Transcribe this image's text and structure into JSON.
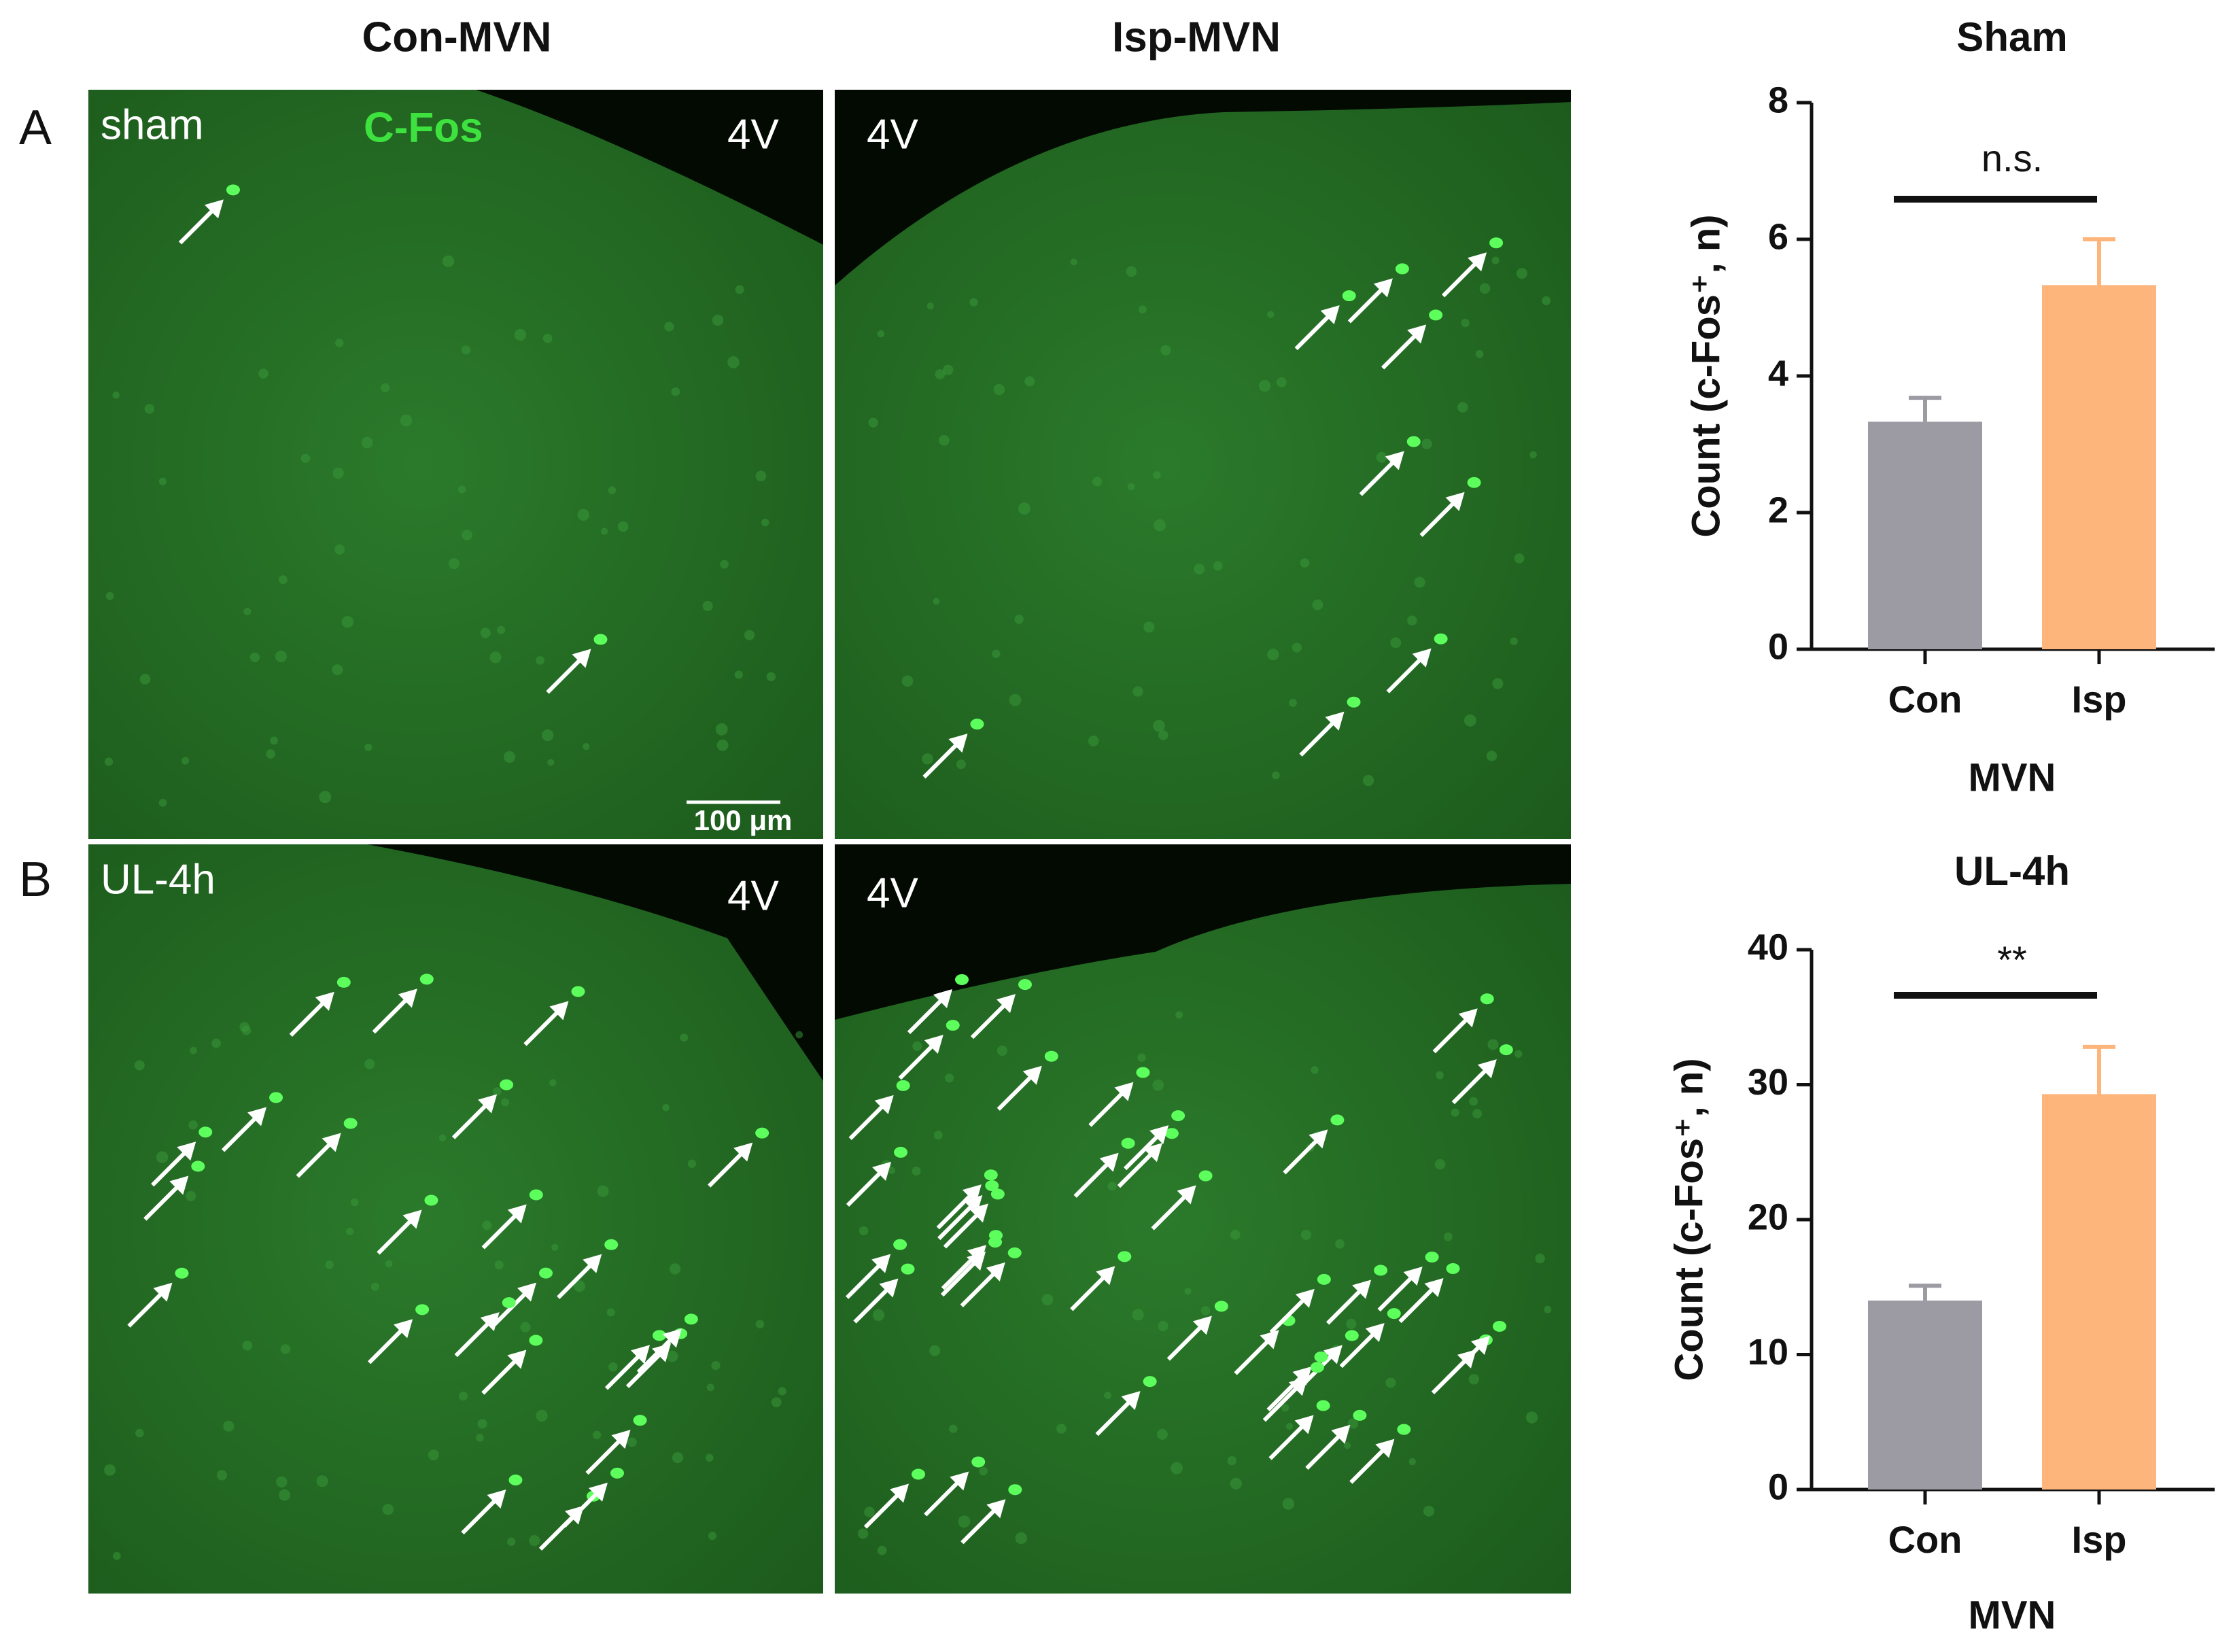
{
  "panels": {
    "column_titles": [
      "Con-MVN",
      "Isp-MVN"
    ],
    "rows": [
      {
        "letter": "A",
        "label": "sham",
        "stain": "C-Fos",
        "ventricle": [
          "4V",
          "4V"
        ],
        "scale_bar": "100 μm"
      },
      {
        "letter": "B",
        "label": "UL-4h",
        "ventricle": [
          "4V",
          "4V"
        ]
      }
    ]
  },
  "chart_data": [
    {
      "type": "bar",
      "title": "Sham",
      "categories": [
        "Con",
        "Isp"
      ],
      "values": [
        3.33,
        5.33
      ],
      "errors": [
        0.35,
        0.67
      ],
      "colors": [
        "#9c9aa3",
        "#fdb57c"
      ],
      "ylim": [
        0,
        8
      ],
      "yticks": [
        0,
        2,
        4,
        6,
        8
      ],
      "y_label": "Count (c-Fos⁺, n)",
      "x_label": "MVN",
      "annotation": "n.s."
    },
    {
      "type": "bar",
      "title": "UL-4h",
      "categories": [
        "Con",
        "Isp"
      ],
      "values": [
        14,
        29.3
      ],
      "errors": [
        1.1,
        3.5
      ],
      "colors": [
        "#9c9aa3",
        "#fdb57c"
      ],
      "ylim": [
        0,
        40
      ],
      "yticks": [
        0,
        10,
        20,
        30,
        40
      ],
      "y_label": "Count (c-Fos⁺, n)",
      "x_label": "MVN",
      "annotation": "**"
    }
  ]
}
